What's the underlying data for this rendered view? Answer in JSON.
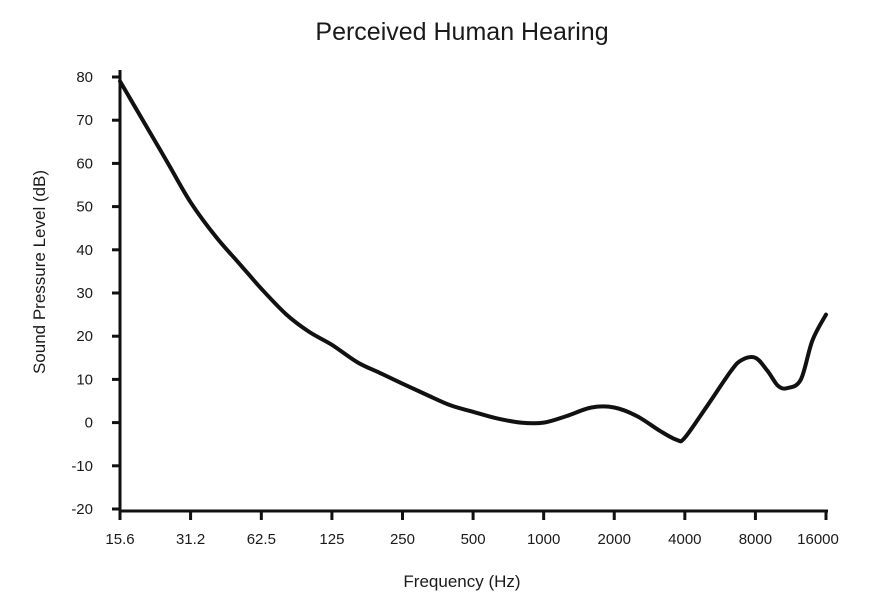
{
  "chart_data": {
    "type": "line",
    "title": "Perceived Human Hearing",
    "xlabel": "Frequency (Hz)",
    "ylabel": "Sound Pressure Level (dB)",
    "x_scale": "log2",
    "x_ticks": [
      "15.6",
      "31.2",
      "62.5",
      "125",
      "250",
      "500",
      "1000",
      "2000",
      "4000",
      "8000",
      "16000"
    ],
    "x_tick_values": [
      15.6,
      31.2,
      62.5,
      125,
      250,
      500,
      1000,
      2000,
      4000,
      8000,
      16000
    ],
    "y_ticks": [
      "80",
      "70",
      "60",
      "50",
      "40",
      "30",
      "20",
      "10",
      "0",
      "-10",
      "-20"
    ],
    "ylim": [
      -20,
      80
    ],
    "grid": false,
    "series": [
      {
        "x": [
          15.6,
          20,
          25,
          31.2,
          40,
          50,
          62.5,
          80,
          100,
          125,
          160,
          200,
          250,
          315,
          400,
          500,
          630,
          800,
          1000,
          1250,
          1600,
          2000,
          2500,
          3150,
          3700,
          4000,
          5000,
          6300,
          7000,
          8000,
          9000,
          10000,
          11000,
          12500,
          14000,
          16000
        ],
        "y": [
          79,
          69,
          60,
          51,
          43,
          37,
          31,
          25,
          21,
          18,
          14,
          11.5,
          9,
          6.5,
          4,
          2.5,
          1,
          0,
          0,
          1.5,
          3.5,
          3.5,
          1.5,
          -2,
          -4,
          -3.5,
          4,
          12,
          14.5,
          15,
          12,
          8.5,
          8,
          10,
          19,
          25
        ]
      }
    ]
  }
}
